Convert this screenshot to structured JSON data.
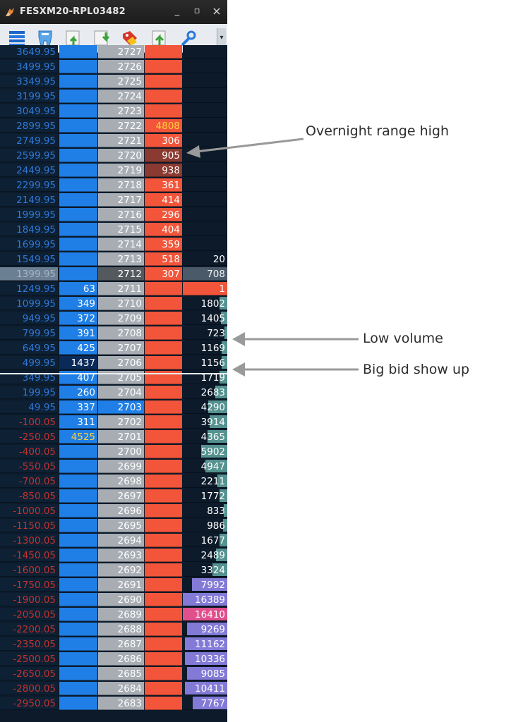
{
  "window": {
    "title": "FESXM20-RPL03482",
    "controls": {
      "minimize": "_",
      "maximize": "▫",
      "close": "×"
    }
  },
  "toolbar": {
    "icons": [
      "stack-icon",
      "tooth-icon",
      "export-up-icon",
      "export-down-icon",
      "tag-icon",
      "upload-icon",
      "wrench-icon"
    ],
    "more": "▾"
  },
  "colors": {
    "bid": "#1f7fe6",
    "ask": "#f2553a",
    "price": "#a7adb3",
    "pnl_positive": "#2f79d8",
    "pnl_negative": "#c2332e",
    "highlight_yellow": "#ffd23a",
    "volume_purple": "#8a7fe0",
    "volume_pink": "#e0508c"
  },
  "rows": [
    {
      "pnl": "3649.95",
      "bid": "",
      "price": "2727",
      "ask": "",
      "vol": ""
    },
    {
      "pnl": "3499.95",
      "bid": "",
      "price": "2726",
      "ask": "",
      "vol": ""
    },
    {
      "pnl": "3349.95",
      "bid": "",
      "price": "2725",
      "ask": "",
      "vol": ""
    },
    {
      "pnl": "3199.95",
      "bid": "",
      "price": "2724",
      "ask": "",
      "vol": ""
    },
    {
      "pnl": "3049.95",
      "bid": "",
      "price": "2723",
      "ask": "",
      "vol": ""
    },
    {
      "pnl": "2899.95",
      "bid": "",
      "price": "2722",
      "ask": "4808",
      "ask_style": "yellow",
      "vol": ""
    },
    {
      "pnl": "2749.95",
      "bid": "",
      "price": "2721",
      "ask": "306",
      "vol": ""
    },
    {
      "pnl": "2599.95",
      "bid": "",
      "price": "2720",
      "ask": "905",
      "ask_style": "dark",
      "vol": ""
    },
    {
      "pnl": "2449.95",
      "bid": "",
      "price": "2719",
      "ask": "938",
      "ask_style": "dark",
      "vol": ""
    },
    {
      "pnl": "2299.95",
      "bid": "",
      "price": "2718",
      "ask": "361",
      "vol": ""
    },
    {
      "pnl": "2149.95",
      "bid": "",
      "price": "2717",
      "ask": "414",
      "vol": ""
    },
    {
      "pnl": "1999.95",
      "bid": "",
      "price": "2716",
      "ask": "296",
      "vol": ""
    },
    {
      "pnl": "1849.95",
      "bid": "",
      "price": "2715",
      "ask": "404",
      "vol": ""
    },
    {
      "pnl": "1699.95",
      "bid": "",
      "price": "2714",
      "ask": "359",
      "vol": ""
    },
    {
      "pnl": "1549.95",
      "bid": "",
      "price": "2713",
      "ask": "518",
      "vol": "20"
    },
    {
      "pnl": "1399.95",
      "bid": "",
      "price": "2712",
      "ask": "307",
      "vol": "708",
      "current": true
    },
    {
      "pnl": "1249.95",
      "bid": "63",
      "price": "2711",
      "ask": "",
      "vol": "1",
      "vol_style": "red"
    },
    {
      "pnl": "1099.95",
      "bid": "349",
      "price": "2710",
      "ask": "",
      "vol": "1802",
      "vol_bar": 0.18
    },
    {
      "pnl": "949.95",
      "bid": "372",
      "price": "2709",
      "ask": "",
      "vol": "1405",
      "vol_bar": 0.14
    },
    {
      "pnl": "799.95",
      "bid": "391",
      "price": "2708",
      "ask": "",
      "vol": "723",
      "vol_bar": 0.07
    },
    {
      "pnl": "649.95",
      "bid": "425",
      "price": "2707",
      "ask": "",
      "vol": "1169",
      "vol_bar": 0.12
    },
    {
      "pnl": "499.95",
      "bid": "1437",
      "bid_style": "dark",
      "price": "2706",
      "ask": "",
      "vol": "1156",
      "vol_bar": 0.12
    },
    {
      "pnl": "349.95",
      "bid": "407",
      "price": "2705",
      "ask": "",
      "vol": "1719",
      "vol_bar": 0.17
    },
    {
      "pnl": "199.95",
      "bid": "260",
      "price": "2704",
      "ask": "",
      "vol": "2683",
      "vol_bar": 0.27
    },
    {
      "pnl": "49.95",
      "bid": "337",
      "price": "2703",
      "price_style": "blue",
      "ask": "",
      "vol": "4290",
      "vol_bar": 0.43
    },
    {
      "pnl": "-100.05",
      "bid": "311",
      "price": "2702",
      "ask": "",
      "vol": "3914",
      "vol_bar": 0.39
    },
    {
      "pnl": "-250.05",
      "bid": "4525",
      "bid_style": "yellow",
      "price": "2701",
      "ask": "",
      "vol": "4365",
      "vol_bar": 0.44
    },
    {
      "pnl": "-400.05",
      "bid": "",
      "price": "2700",
      "ask": "",
      "vol": "5902",
      "vol_bar": 0.59
    },
    {
      "pnl": "-550.05",
      "bid": "",
      "price": "2699",
      "ask": "",
      "vol": "4947",
      "vol_bar": 0.49
    },
    {
      "pnl": "-700.05",
      "bid": "",
      "price": "2698",
      "ask": "",
      "vol": "2211",
      "vol_bar": 0.22
    },
    {
      "pnl": "-850.05",
      "bid": "",
      "price": "2697",
      "ask": "",
      "vol": "1772",
      "vol_bar": 0.18
    },
    {
      "pnl": "-1000.05",
      "bid": "",
      "price": "2696",
      "ask": "",
      "vol": "833",
      "vol_bar": 0.08
    },
    {
      "pnl": "-1150.05",
      "bid": "",
      "price": "2695",
      "ask": "",
      "vol": "986",
      "vol_bar": 0.1
    },
    {
      "pnl": "-1300.05",
      "bid": "",
      "price": "2694",
      "ask": "",
      "vol": "1677",
      "vol_bar": 0.17
    },
    {
      "pnl": "-1450.05",
      "bid": "",
      "price": "2693",
      "ask": "",
      "vol": "2489",
      "vol_bar": 0.25
    },
    {
      "pnl": "-1600.05",
      "bid": "",
      "price": "2692",
      "ask": "",
      "vol": "3324",
      "vol_bar": 0.33
    },
    {
      "pnl": "-1750.05",
      "bid": "",
      "price": "2691",
      "ask": "",
      "vol": "7992",
      "vol_bar": 0.8,
      "vol_color": "purple"
    },
    {
      "pnl": "-1900.05",
      "bid": "",
      "price": "2690",
      "ask": "",
      "vol": "16389",
      "vol_bar": 1.0,
      "vol_color": "purple"
    },
    {
      "pnl": "-2050.05",
      "bid": "",
      "price": "2689",
      "ask": "",
      "vol": "16410",
      "vol_bar": 1.0,
      "vol_color": "pink"
    },
    {
      "pnl": "-2200.05",
      "bid": "",
      "price": "2688",
      "ask": "",
      "vol": "9269",
      "vol_bar": 0.9,
      "vol_color": "purple"
    },
    {
      "pnl": "-2350.05",
      "bid": "",
      "price": "2687",
      "ask": "",
      "vol": "11162",
      "vol_bar": 0.95,
      "vol_color": "purple"
    },
    {
      "pnl": "-2500.05",
      "bid": "",
      "price": "2686",
      "ask": "",
      "vol": "10336",
      "vol_bar": 0.95,
      "vol_color": "purple"
    },
    {
      "pnl": "-2650.05",
      "bid": "",
      "price": "2685",
      "ask": "",
      "vol": "9085",
      "vol_bar": 0.9,
      "vol_color": "purple"
    },
    {
      "pnl": "-2800.05",
      "bid": "",
      "price": "2684",
      "ask": "",
      "vol": "10411",
      "vol_bar": 0.95,
      "vol_color": "purple"
    },
    {
      "pnl": "-2950.05",
      "bid": "",
      "price": "2683",
      "ask": "",
      "vol": "7767",
      "vol_bar": 0.78,
      "vol_color": "purple"
    }
  ],
  "annotations": [
    {
      "text": "Overnight range high"
    },
    {
      "text": "Low volume"
    },
    {
      "text": "Big bid show up"
    }
  ]
}
